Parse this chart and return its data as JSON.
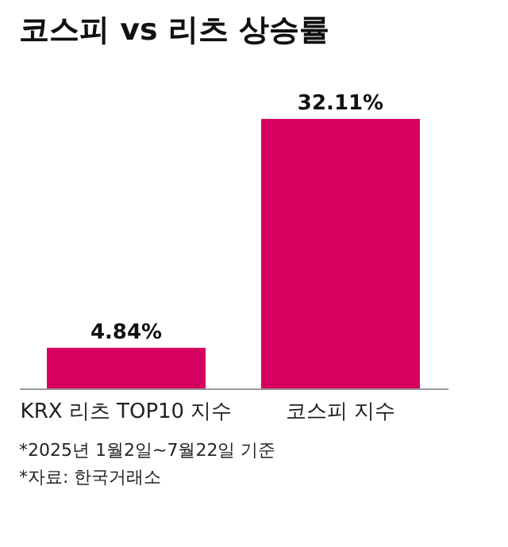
{
  "chart_data": {
    "type": "bar",
    "title": "코스피 vs 리츠 상승률",
    "categories": [
      "KRX 리츠 TOP10 지수",
      "코스피 지수"
    ],
    "values": [
      4.84,
      32.11
    ],
    "value_labels": [
      "4.84%",
      "32.11%"
    ],
    "color": "#d6015f",
    "annotations": [
      "*2025년 1월2일~7월22일 기준",
      "*자료: 한국거래소"
    ],
    "grid": false
  }
}
